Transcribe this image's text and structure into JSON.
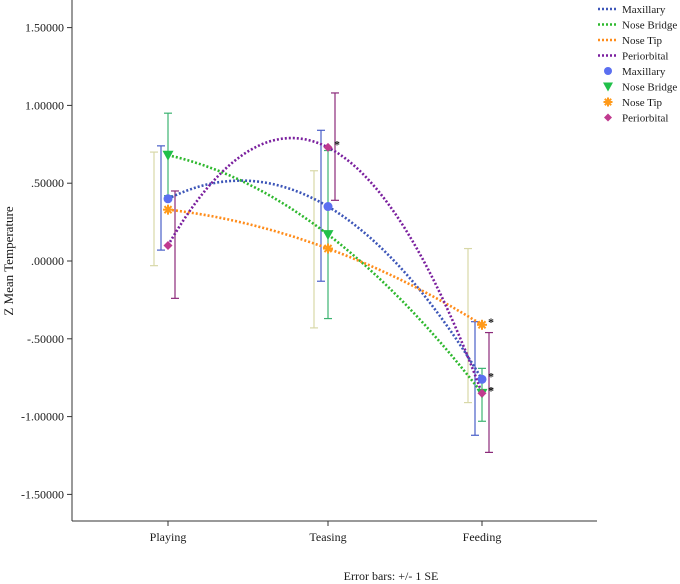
{
  "chart_data": {
    "type": "scatter",
    "title": "",
    "xlabel": "",
    "ylabel": "Z Mean Temperature",
    "footnote": "Error bars: +/- 1 SE",
    "categories": [
      "Playing",
      "Teasing",
      "Feeding"
    ],
    "y_ticks": [
      1.5,
      1.0,
      0.5,
      0.0,
      -0.5,
      -1.0,
      -1.5
    ],
    "y_tick_labels": [
      "1.50000",
      "1.00000",
      ".50000",
      ".00000",
      "-.50000",
      "-1.00000",
      "-1.50000"
    ],
    "ylim": [
      -1.68,
      1.68
    ],
    "grid": false,
    "legend_position": "top-right",
    "series": [
      {
        "name": "Maxillary",
        "color": "#3d56b8",
        "marker": "circle",
        "marker_color": "#5b6ff0",
        "values": [
          0.4,
          0.35,
          -0.76
        ],
        "err_low": [
          0.07,
          -0.13,
          -1.12
        ],
        "err_high": [
          0.74,
          0.84,
          -0.39
        ],
        "err_color": "#4a5fc8",
        "err_offset": -1,
        "significance": [
          "",
          "",
          "*"
        ]
      },
      {
        "name": "Nose Bridge",
        "color": "#2eb82e",
        "marker": "triangle-down",
        "marker_color": "#21c04a",
        "values": [
          0.68,
          0.17,
          -0.85
        ],
        "err_low": [
          0.42,
          -0.37,
          -1.03
        ],
        "err_high": [
          0.95,
          0.71,
          -0.69
        ],
        "err_color": "#3cb371",
        "err_offset": 0,
        "significance": [
          "",
          "",
          "*"
        ]
      },
      {
        "name": "Nose Tip",
        "color": "#ff8c1a",
        "marker": "asterisk",
        "marker_color": "#ff9a1a",
        "values": [
          0.33,
          0.08,
          -0.41
        ],
        "err_low": [
          -0.03,
          -0.43,
          -0.91
        ],
        "err_high": [
          0.7,
          0.58,
          0.08
        ],
        "err_color": "#d8d8a8",
        "err_offset": -2,
        "significance": [
          "",
          "",
          "*"
        ]
      },
      {
        "name": "Periorbital",
        "color": "#7a1f9e",
        "marker": "diamond",
        "marker_color": "#c03a8f",
        "values": [
          0.1,
          0.73,
          -0.85
        ],
        "err_low": [
          -0.24,
          0.39,
          -1.23
        ],
        "err_high": [
          0.45,
          1.08,
          -0.46
        ],
        "err_color": "#8b2a7a",
        "err_offset": 1,
        "significance": [
          "",
          "*",
          "*"
        ]
      }
    ]
  }
}
